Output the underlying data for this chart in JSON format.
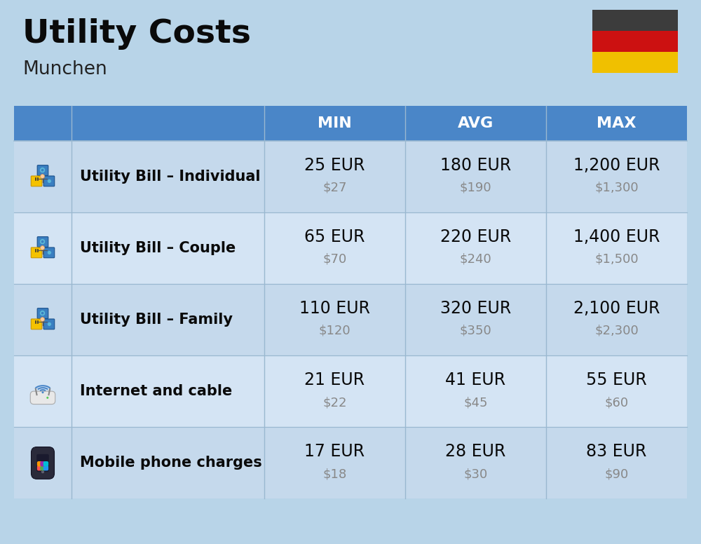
{
  "title": "Utility Costs",
  "subtitle": "Munchen",
  "background_color": "#b8d4e8",
  "header_bg_color": "#4a86c8",
  "header_text_color": "#ffffff",
  "row_bg_odd": "#c5d9ec",
  "row_bg_even": "#d4e4f4",
  "divider_color": "#9ab8d0",
  "flag_colors": [
    "#3c3c3c",
    "#cc1111",
    "#f0c000"
  ],
  "title_fontsize": 34,
  "subtitle_fontsize": 19,
  "header_fontsize": 16,
  "label_fontsize": 15,
  "value_eur_fontsize": 17,
  "value_usd_fontsize": 13,
  "rows": [
    {
      "label": "Utility Bill – Individual",
      "min_eur": "25 EUR",
      "min_usd": "$27",
      "avg_eur": "180 EUR",
      "avg_usd": "$190",
      "max_eur": "1,200 EUR",
      "max_usd": "$1,300"
    },
    {
      "label": "Utility Bill – Couple",
      "min_eur": "65 EUR",
      "min_usd": "$70",
      "avg_eur": "220 EUR",
      "avg_usd": "$240",
      "max_eur": "1,400 EUR",
      "max_usd": "$1,500"
    },
    {
      "label": "Utility Bill – Family",
      "min_eur": "110 EUR",
      "min_usd": "$120",
      "avg_eur": "320 EUR",
      "avg_usd": "$350",
      "max_eur": "2,100 EUR",
      "max_usd": "$2,300"
    },
    {
      "label": "Internet and cable",
      "min_eur": "21 EUR",
      "min_usd": "$22",
      "avg_eur": "41 EUR",
      "avg_usd": "$45",
      "max_eur": "55 EUR",
      "max_usd": "$60"
    },
    {
      "label": "Mobile phone charges",
      "min_eur": "17 EUR",
      "min_usd": "$18",
      "avg_eur": "28 EUR",
      "avg_usd": "$30",
      "max_eur": "83 EUR",
      "max_usd": "$90"
    }
  ]
}
